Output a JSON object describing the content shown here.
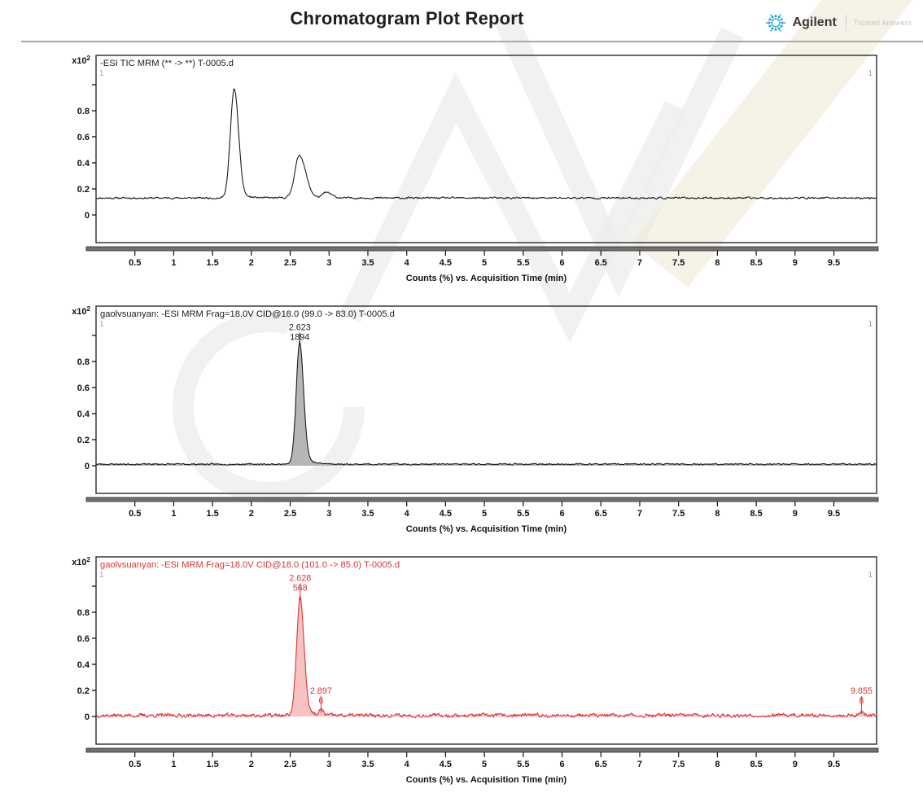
{
  "page": {
    "title": "Chromatogram Plot Report",
    "brand": {
      "name": "Agilent",
      "tagline": "Trusted Answers",
      "logo_color": "#1aa3dd"
    }
  },
  "axis": {
    "x_label": "Counts (%) vs. Acquisition Time (min)",
    "x_range": [
      0,
      10.05
    ],
    "x_tick_values": [
      0.5,
      1,
      1.5,
      2,
      2.5,
      3,
      3.5,
      4,
      4.5,
      5,
      5.5,
      6,
      6.5,
      7,
      7.5,
      8,
      8.5,
      9,
      9.5
    ],
    "x_tick_labels": [
      "0.5",
      "1",
      "1.5",
      "2",
      "2.5",
      "3",
      "3.5",
      "4",
      "4.5",
      "5",
      "5.5",
      "6",
      "6.5",
      "7",
      "7.5",
      "8",
      "8.5",
      "9",
      "9.5"
    ],
    "y_scale_label": "x10",
    "y_scale_exponent": "2",
    "y_range": [
      -0.21,
      1.23
    ],
    "y_tick_values": [
      0,
      0.2,
      0.4,
      0.6,
      0.8
    ],
    "y_tick_labels": [
      "0",
      "0.2",
      "0.4",
      "0.6",
      "0.8"
    ],
    "y_unlabeled_ticks": [
      1.0
    ],
    "grid": false
  },
  "chart_data": [
    {
      "type": "line",
      "name": "tic",
      "title": "-ESI TIC MRM (** -> **) T-0005.d",
      "color": "#1c1c1c",
      "fill_color": null,
      "segment_marker_left": "1",
      "segment_marker_right": "1",
      "baseline": 0.13,
      "noise_amplitude": 0.005,
      "noise_seed": 11,
      "peaks": [
        {
          "rt": 1.78,
          "height": 0.84,
          "sigma_left": 0.05,
          "sigma_right": 0.055,
          "tail_fraction": 0.05,
          "tail_tau": 0.12
        },
        {
          "rt": 2.62,
          "height": 0.33,
          "sigma_left": 0.06,
          "sigma_right": 0.08,
          "tail_fraction": 0.08,
          "tail_tau": 0.12
        },
        {
          "rt": 2.96,
          "height": 0.042,
          "sigma_left": 0.04,
          "sigma_right": 0.07,
          "tail_fraction": 0.05,
          "tail_tau": 0.1
        }
      ],
      "peak_annotations": []
    },
    {
      "type": "line",
      "name": "mrm-99-83",
      "title": "gaolvsuanyan: -ESI MRM Frag=18.0V CID@18.0 (99.0 -> 83.0) T-0005.d",
      "color": "#1c1c1c",
      "fill_color": "#b6b6b6",
      "segment_marker_left": "1",
      "segment_marker_right": "1",
      "baseline": 0.012,
      "noise_amplitude": 0.004,
      "noise_seed": 23,
      "peaks": [
        {
          "rt": 2.623,
          "height": 0.94,
          "sigma_left": 0.045,
          "sigma_right": 0.05,
          "tail_fraction": 0.12,
          "tail_tau": 0.09
        }
      ],
      "peak_annotations": [
        {
          "rt": 2.623,
          "apex_value": 0.952,
          "anchor_value": 1.04,
          "labels": [
            "2.623",
            "1894"
          ]
        }
      ]
    },
    {
      "type": "line",
      "name": "mrm-101-85",
      "title": "gaolvsuanyan: -ESI MRM Frag=18.0V CID@18.0 (101.0 -> 85.0) T-0005.d",
      "color": "#d93535",
      "fill_color": "#f8c2c2",
      "segment_marker_left": "1",
      "segment_marker_right": "1",
      "baseline": 0.008,
      "noise_amplitude": 0.011,
      "noise_seed": 37,
      "peaks": [
        {
          "rt": 2.628,
          "height": 0.91,
          "sigma_left": 0.045,
          "sigma_right": 0.05,
          "tail_fraction": 0.1,
          "tail_tau": 0.09
        },
        {
          "rt": 2.897,
          "height": 0.045,
          "sigma_left": 0.018,
          "sigma_right": 0.03,
          "tail_fraction": 0,
          "tail_tau": 0.1
        },
        {
          "rt": 9.855,
          "height": 0.035,
          "sigma_left": 0.022,
          "sigma_right": 0.028,
          "tail_fraction": 0,
          "tail_tau": 0.1
        }
      ],
      "peak_annotations": [
        {
          "rt": 2.628,
          "apex_value": 0.918,
          "anchor_value": 1.04,
          "labels": [
            "2.628",
            "568"
          ]
        },
        {
          "rt": 2.897,
          "apex_value": 0.053,
          "anchor_value": 0.175,
          "labels": [
            "2.897",
            "6"
          ]
        },
        {
          "rt": 9.855,
          "apex_value": 0.043,
          "anchor_value": 0.175,
          "labels": [
            "9.855",
            "8"
          ]
        }
      ]
    }
  ],
  "watermark": {
    "stroke_color": "#ededeb",
    "band_color": "#efe7d5"
  }
}
